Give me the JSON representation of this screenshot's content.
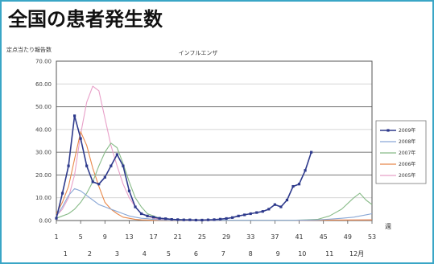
{
  "title": "全国の患者発生数",
  "colors": {
    "frame": "#3aa6c6",
    "grid_major": "#888888",
    "grid_minor": "#c8c8c8"
  },
  "chart_data": {
    "type": "line",
    "title": "インフルエンザ",
    "ylabel": "定点当たり報告数",
    "xlabel": "週",
    "ylim": [
      0,
      70
    ],
    "yticks": [
      "0.00",
      "10.00",
      "20.00",
      "30.00",
      "40.00",
      "50.00",
      "60.00",
      "70.00"
    ],
    "xticks": [
      "1",
      "5",
      "9",
      "13",
      "17",
      "21",
      "25",
      "29",
      "33",
      "37",
      "41",
      "45",
      "49",
      "53"
    ],
    "month_ticks": [
      "1",
      "2",
      "3",
      "4",
      "5",
      "6",
      "7",
      "8",
      "9",
      "10",
      "11",
      "12月"
    ],
    "legend_position": "right",
    "grid": true,
    "series": [
      {
        "name": "2009年",
        "color": "#2e3a8c",
        "markers": true,
        "points": [
          [
            1,
            1
          ],
          [
            2,
            12
          ],
          [
            3,
            24
          ],
          [
            4,
            46
          ],
          [
            5,
            36
          ],
          [
            6,
            24
          ],
          [
            7,
            17
          ],
          [
            8,
            16
          ],
          [
            9,
            19
          ],
          [
            10,
            24
          ],
          [
            11,
            29
          ],
          [
            12,
            24
          ],
          [
            13,
            13
          ],
          [
            14,
            6
          ],
          [
            15,
            3
          ],
          [
            16,
            2
          ],
          [
            17,
            1.5
          ],
          [
            18,
            1
          ],
          [
            19,
            0.8
          ],
          [
            20,
            0.5
          ],
          [
            21,
            0.4
          ],
          [
            22,
            0.3
          ],
          [
            23,
            0.3
          ],
          [
            24,
            0.2
          ],
          [
            25,
            0.2
          ],
          [
            26,
            0.3
          ],
          [
            27,
            0.4
          ],
          [
            28,
            0.6
          ],
          [
            29,
            0.9
          ],
          [
            30,
            1.3
          ],
          [
            31,
            2
          ],
          [
            32,
            2.5
          ],
          [
            33,
            3
          ],
          [
            34,
            3.5
          ],
          [
            35,
            4
          ],
          [
            36,
            5
          ],
          [
            37,
            7
          ],
          [
            38,
            6
          ],
          [
            39,
            9
          ],
          [
            40,
            15
          ],
          [
            41,
            16
          ],
          [
            42,
            22
          ],
          [
            43,
            30
          ]
        ]
      },
      {
        "name": "2008年",
        "color": "#8aa8d6",
        "markers": false,
        "points": [
          [
            1,
            2
          ],
          [
            2,
            6
          ],
          [
            3,
            11
          ],
          [
            4,
            14
          ],
          [
            5,
            13
          ],
          [
            6,
            11
          ],
          [
            7,
            9
          ],
          [
            8,
            7
          ],
          [
            9,
            6
          ],
          [
            10,
            5
          ],
          [
            11,
            4
          ],
          [
            12,
            3
          ],
          [
            13,
            2
          ],
          [
            14,
            1.5
          ],
          [
            15,
            1
          ],
          [
            16,
            0.8
          ],
          [
            17,
            0.5
          ],
          [
            18,
            0.3
          ],
          [
            20,
            0.2
          ],
          [
            24,
            0.1
          ],
          [
            30,
            0.1
          ],
          [
            40,
            0.1
          ],
          [
            44,
            0.3
          ],
          [
            46,
            0.6
          ],
          [
            48,
            1
          ],
          [
            50,
            1.5
          ],
          [
            52,
            2.5
          ],
          [
            53,
            3
          ]
        ]
      },
      {
        "name": "2007年",
        "color": "#88bb88",
        "markers": false,
        "points": [
          [
            1,
            1
          ],
          [
            2,
            2
          ],
          [
            3,
            3
          ],
          [
            4,
            5
          ],
          [
            5,
            8
          ],
          [
            6,
            12
          ],
          [
            7,
            17
          ],
          [
            8,
            24
          ],
          [
            9,
            30
          ],
          [
            10,
            34
          ],
          [
            11,
            32
          ],
          [
            12,
            25
          ],
          [
            13,
            17
          ],
          [
            14,
            10
          ],
          [
            15,
            6
          ],
          [
            16,
            3
          ],
          [
            17,
            2
          ],
          [
            18,
            1
          ],
          [
            20,
            0.5
          ],
          [
            24,
            0.3
          ],
          [
            30,
            0.1
          ],
          [
            40,
            0.1
          ],
          [
            44,
            0.5
          ],
          [
            46,
            2
          ],
          [
            48,
            5
          ],
          [
            50,
            10
          ],
          [
            51,
            12
          ],
          [
            52,
            9
          ],
          [
            53,
            7
          ]
        ]
      },
      {
        "name": "2006年",
        "color": "#e8884a",
        "markers": false,
        "points": [
          [
            1,
            3
          ],
          [
            2,
            8
          ],
          [
            3,
            15
          ],
          [
            4,
            27
          ],
          [
            5,
            39
          ],
          [
            6,
            33
          ],
          [
            7,
            23
          ],
          [
            8,
            15
          ],
          [
            9,
            8
          ],
          [
            10,
            5
          ],
          [
            11,
            3
          ],
          [
            12,
            1.5
          ],
          [
            13,
            1
          ],
          [
            14,
            0.5
          ],
          [
            15,
            0.3
          ],
          [
            17,
            0.1
          ],
          [
            24,
            0.1
          ],
          [
            40,
            0.1
          ],
          [
            46,
            0.2
          ],
          [
            53,
            0.3
          ]
        ]
      },
      {
        "name": "2005年",
        "color": "#e8a0c8",
        "markers": false,
        "points": [
          [
            1,
            2
          ],
          [
            2,
            5
          ],
          [
            3,
            10
          ],
          [
            4,
            20
          ],
          [
            5,
            38
          ],
          [
            6,
            52
          ],
          [
            7,
            59
          ],
          [
            8,
            57
          ],
          [
            9,
            45
          ],
          [
            10,
            33
          ],
          [
            11,
            24
          ],
          [
            12,
            16
          ],
          [
            13,
            10
          ],
          [
            14,
            6
          ],
          [
            15,
            3
          ],
          [
            16,
            2
          ],
          [
            17,
            1
          ],
          [
            18,
            0.5
          ],
          [
            20,
            0.3
          ],
          [
            24,
            0.1
          ],
          [
            40,
            0.1
          ],
          [
            48,
            0.2
          ],
          [
            53,
            0.3
          ]
        ]
      }
    ]
  }
}
